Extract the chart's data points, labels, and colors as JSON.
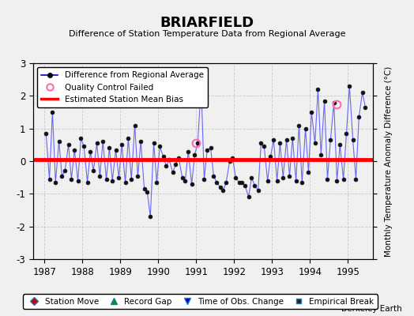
{
  "title": "BRIARFIELD",
  "subtitle": "Difference of Station Temperature Data from Regional Average",
  "ylabel": "Monthly Temperature Anomaly Difference (°C)",
  "xlabel_ticks": [
    1987,
    1988,
    1989,
    1990,
    1991,
    1992,
    1993,
    1994,
    1995
  ],
  "ylim": [
    -3,
    3
  ],
  "xlim": [
    1986.7,
    1995.65
  ],
  "yticks": [
    -3,
    -2,
    -1,
    0,
    1,
    2,
    3
  ],
  "mean_bias": 0.04,
  "line_color": "#6666FF",
  "line_color_dark": "#0000CC",
  "mean_bias_color": "#FF0000",
  "background_color": "#F0F0F0",
  "grid_color": "#C8C8C8",
  "quality_fail_color": "#FF69B4",
  "qc_fail_points": [
    [
      1991.0,
      0.55
    ],
    [
      1994.71,
      1.75
    ]
  ],
  "data_x": [
    1987.04,
    1987.13,
    1987.21,
    1987.29,
    1987.38,
    1987.46,
    1987.54,
    1987.63,
    1987.71,
    1987.79,
    1987.88,
    1987.96,
    1988.04,
    1988.13,
    1988.21,
    1988.29,
    1988.38,
    1988.46,
    1988.54,
    1988.63,
    1988.71,
    1988.79,
    1988.88,
    1988.96,
    1989.04,
    1989.13,
    1989.21,
    1989.29,
    1989.38,
    1989.46,
    1989.54,
    1989.63,
    1989.71,
    1989.79,
    1989.88,
    1989.96,
    1990.04,
    1990.13,
    1990.21,
    1990.29,
    1990.38,
    1990.46,
    1990.54,
    1990.63,
    1990.71,
    1990.79,
    1990.88,
    1990.96,
    1991.04,
    1991.13,
    1991.21,
    1991.29,
    1991.38,
    1991.46,
    1991.54,
    1991.63,
    1991.71,
    1991.79,
    1991.88,
    1991.96,
    1992.04,
    1992.13,
    1992.21,
    1992.29,
    1992.38,
    1992.46,
    1992.54,
    1992.63,
    1992.71,
    1992.79,
    1992.88,
    1992.96,
    1993.04,
    1993.13,
    1993.21,
    1993.29,
    1993.38,
    1993.46,
    1993.54,
    1993.63,
    1993.71,
    1993.79,
    1993.88,
    1993.96,
    1994.04,
    1994.13,
    1994.21,
    1994.29,
    1994.38,
    1994.46,
    1994.54,
    1994.63,
    1994.71,
    1994.79,
    1994.88,
    1994.96,
    1995.04,
    1995.13,
    1995.21,
    1995.29,
    1995.38,
    1995.46
  ],
  "data_y": [
    0.85,
    -0.55,
    1.5,
    -0.65,
    0.6,
    -0.45,
    -0.3,
    0.5,
    -0.55,
    0.35,
    -0.6,
    0.7,
    0.45,
    -0.65,
    0.3,
    -0.3,
    0.55,
    -0.45,
    0.6,
    -0.55,
    0.4,
    -0.6,
    0.35,
    -0.5,
    0.5,
    -0.65,
    0.7,
    -0.55,
    1.1,
    -0.45,
    0.6,
    -0.85,
    -0.95,
    -1.7,
    0.55,
    -0.65,
    0.45,
    0.15,
    -0.15,
    0.05,
    -0.35,
    -0.1,
    0.1,
    -0.5,
    -0.6,
    0.3,
    -0.7,
    0.2,
    0.55,
    2.35,
    -0.55,
    0.35,
    0.4,
    -0.45,
    -0.65,
    -0.8,
    -0.9,
    -0.65,
    0.0,
    0.1,
    -0.5,
    -0.65,
    -0.65,
    -0.75,
    -1.1,
    -0.5,
    -0.75,
    -0.9,
    0.55,
    0.45,
    -0.6,
    0.15,
    0.65,
    -0.6,
    0.55,
    -0.5,
    0.65,
    -0.45,
    0.7,
    -0.6,
    1.1,
    -0.65,
    1.0,
    -0.35,
    1.5,
    0.55,
    2.2,
    0.2,
    1.85,
    -0.55,
    0.65,
    1.8,
    -0.6,
    0.5,
    -0.55,
    0.85,
    2.3,
    0.65,
    -0.55,
    1.35,
    2.1,
    1.65
  ],
  "footer_text": "Berkeley Earth"
}
